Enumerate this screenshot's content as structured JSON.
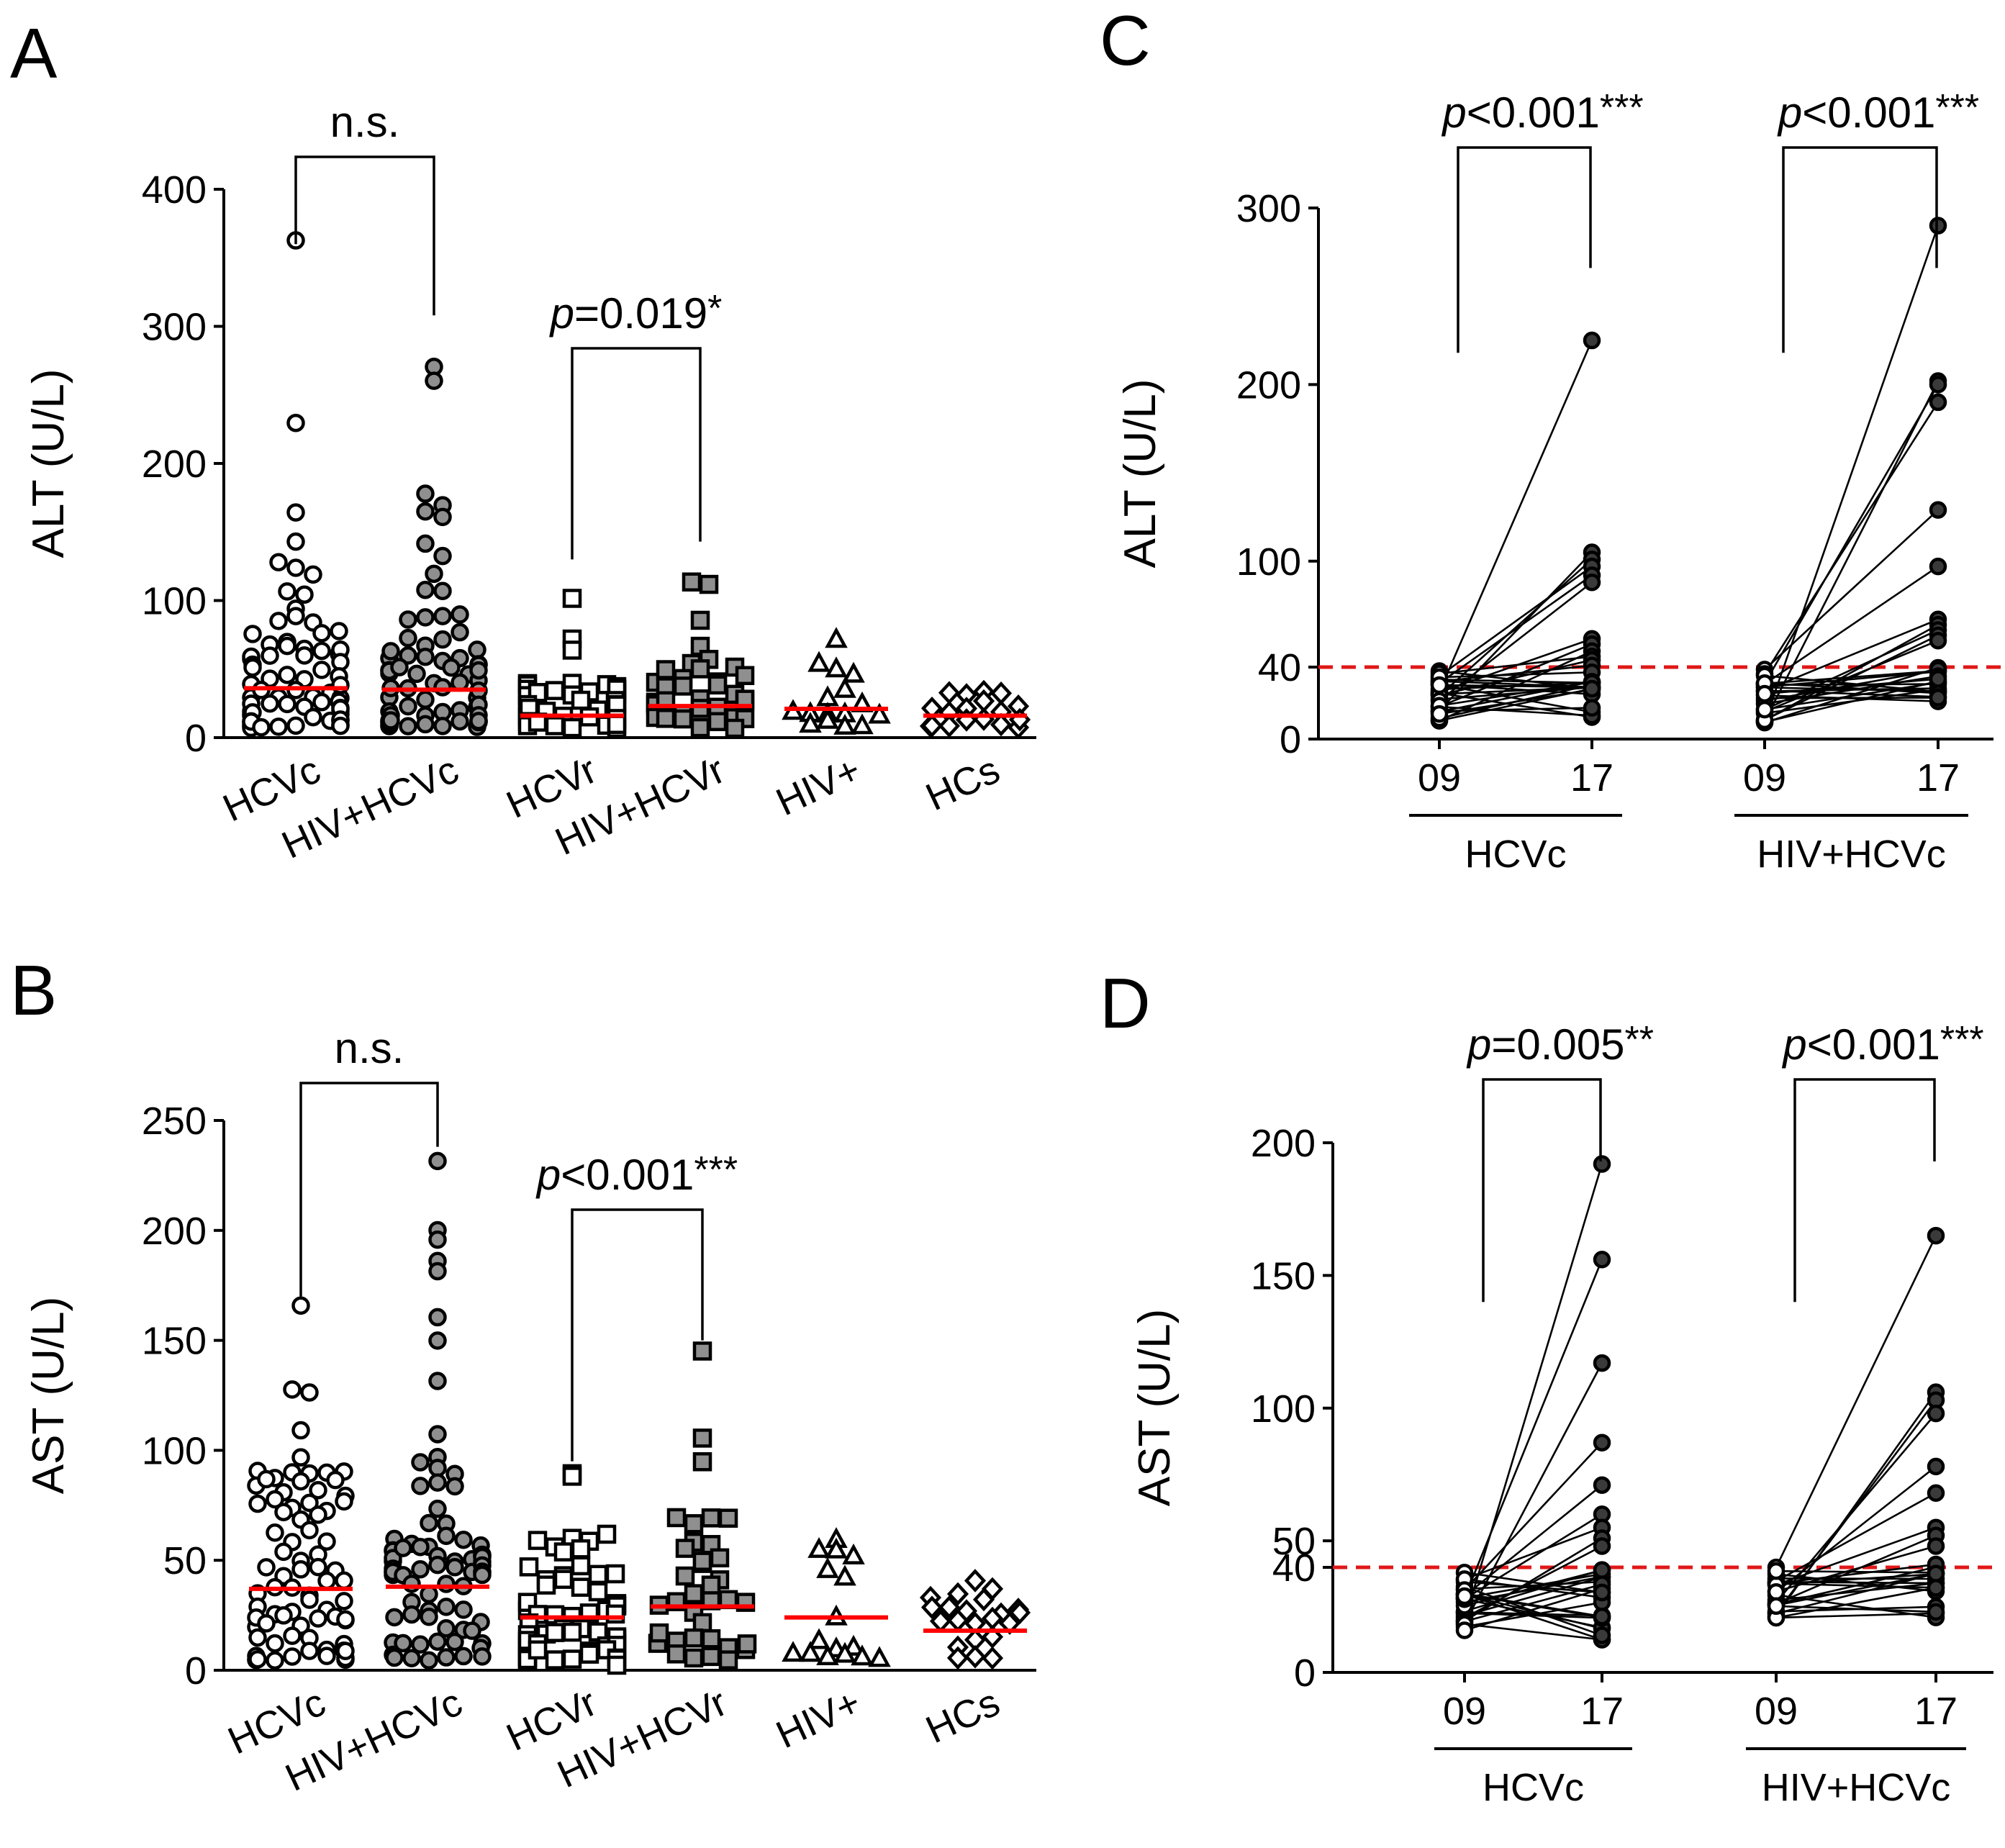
{
  "colors": {
    "median": "#ff0000",
    "threshold": "#e01818",
    "gray": "#8f8f8f",
    "dark": "#3a3a3a",
    "ink": "#000000"
  },
  "chart_data": [
    {
      "panel": "A",
      "type": "scatter",
      "ylabel": "ALT (U/L)",
      "yticks": [
        0,
        100,
        200,
        300,
        400
      ],
      "ylim": [
        0,
        400
      ],
      "categories": [
        "HCVc",
        "HIV+HCVc",
        "HCVr",
        "HIV+HCVr",
        "HIV+",
        "HCs"
      ],
      "groups": [
        {
          "name": "HCVc",
          "marker": "circle",
          "fill": "white",
          "median": 36,
          "n": 75
        },
        {
          "name": "HIV+HCVc",
          "marker": "circle",
          "fill": "gray",
          "median": 35,
          "n": 70
        },
        {
          "name": "HCVr",
          "marker": "square",
          "fill": "white",
          "median": 16,
          "n": 38
        },
        {
          "name": "HIV+HCVr",
          "marker": "square",
          "fill": "gray",
          "median": 23,
          "n": 34
        },
        {
          "name": "HIV+",
          "marker": "triangle",
          "fill": "white",
          "median": 21,
          "n": 16
        },
        {
          "name": "HCs",
          "marker": "diamond",
          "fill": "white",
          "median": 16,
          "n": 18
        }
      ],
      "outliers": [
        {
          "group": 0,
          "values": [
            362,
            229,
            165,
            143,
            127,
            124,
            118,
            107,
            104
          ]
        },
        {
          "group": 1,
          "values": [
            272,
            261,
            177,
            170,
            166,
            160,
            140,
            131,
            120,
            108,
            107
          ]
        },
        {
          "group": 2,
          "values": [
            102,
            73,
            65
          ]
        },
        {
          "group": 3,
          "values": [
            115,
            112,
            85,
            67
          ]
        },
        {
          "group": 4,
          "values": [
            71,
            51,
            45
          ]
        },
        {
          "group": 5,
          "values": [
            35,
            33
          ]
        }
      ],
      "comparisons": [
        {
          "from": 0,
          "to": 1,
          "label_prefix": "",
          "label": "n.s.",
          "stars": "",
          "left_top": 360,
          "right_top": 308
        },
        {
          "from": 2,
          "to": 3,
          "label_prefix": "p",
          "label": "=0.019",
          "stars": "*",
          "left_top": 130,
          "right_top": 143
        }
      ]
    },
    {
      "panel": "B",
      "type": "scatter",
      "ylabel": "AST (U/L)",
      "yticks": [
        0,
        50,
        100,
        150,
        200,
        250
      ],
      "ylim": [
        0,
        250
      ],
      "categories": [
        "HCVc",
        "HIV+HCVc",
        "HCVr",
        "HIV+HCVr",
        "HIV+",
        "HCs"
      ],
      "groups": [
        {
          "name": "HCVc",
          "marker": "circle",
          "fill": "white",
          "median": 37,
          "n": 78
        },
        {
          "name": "HIV+HCVc",
          "marker": "circle",
          "fill": "gray",
          "median": 38,
          "n": 80
        },
        {
          "name": "HCVr",
          "marker": "square",
          "fill": "white",
          "median": 24,
          "n": 60
        },
        {
          "name": "HIV+HCVr",
          "marker": "square",
          "fill": "gray",
          "median": 29,
          "n": 36
        },
        {
          "name": "HIV+",
          "marker": "triangle",
          "fill": "white",
          "median": 24,
          "n": 16
        },
        {
          "name": "HCs",
          "marker": "diamond",
          "fill": "white",
          "median": 18,
          "n": 22
        }
      ],
      "outliers": [
        {
          "group": 0,
          "values": [
            166,
            127,
            126,
            109,
            96
          ]
        },
        {
          "group": 1,
          "values": [
            232,
            200,
            195,
            187,
            182,
            160,
            149,
            131,
            107
          ]
        },
        {
          "group": 2,
          "values": [
            89,
            88,
            3
          ]
        },
        {
          "group": 3,
          "values": [
            145,
            105,
            95
          ]
        },
        {
          "group": 4,
          "values": [
            60,
            55,
            52
          ]
        },
        {
          "group": 5,
          "values": [
            24,
            22
          ]
        }
      ],
      "comparisons": [
        {
          "from": 0,
          "to": 1,
          "label_prefix": "",
          "label": "n.s.",
          "stars": "",
          "left_top": 170,
          "right_top": 238
        },
        {
          "from": 2,
          "to": 3,
          "label_prefix": "p",
          "label": "<0.001",
          "stars": "***",
          "left_top": 95,
          "right_top": 150
        }
      ]
    },
    {
      "panel": "C",
      "type": "paired-line",
      "ylabel": "ALT (U/L)",
      "yticks": [
        0,
        40,
        100,
        200,
        300
      ],
      "ylim": [
        0,
        300
      ],
      "threshold": 40,
      "timepoints": [
        "09",
        "17"
      ],
      "groups": [
        {
          "name": "HCVc",
          "n": 30,
          "range09": [
            10,
            40
          ],
          "low17": 10,
          "high17": [
            225,
            105,
            101,
            97,
            92,
            88,
            56,
            53,
            49,
            46,
            44
          ]
        },
        {
          "name": "HIV+HCVc",
          "n": 28,
          "range09": [
            8,
            40
          ],
          "low17": 20,
          "high17": [
            290,
            202,
            200,
            190,
            129,
            97,
            67,
            64,
            61,
            58,
            55
          ]
        }
      ],
      "comparisons": [
        {
          "group": 0,
          "label_prefix": "p",
          "label": "<0.001",
          "stars": "***",
          "left_top": 218,
          "right_top": 266
        },
        {
          "group": 1,
          "label_prefix": "p",
          "label": "<0.001",
          "stars": "***",
          "left_top": 218,
          "right_top": 266
        }
      ]
    },
    {
      "panel": "D",
      "type": "paired-line",
      "ylabel": "AST (U/L)",
      "yticks": [
        0,
        40,
        50,
        100,
        150,
        200
      ],
      "ylim": [
        0,
        200
      ],
      "threshold": 40,
      "timepoints": [
        "09",
        "17"
      ],
      "groups": [
        {
          "name": "HCVc",
          "n": 30,
          "range09": [
            16,
            40
          ],
          "low17": 11,
          "high17": [
            192,
            156,
            117,
            87,
            71,
            60,
            55,
            51,
            48
          ]
        },
        {
          "name": "HIV+HCVc",
          "n": 25,
          "range09": [
            20,
            40
          ],
          "low17": 20,
          "high17": [
            165,
            106,
            103,
            98,
            78,
            68,
            55,
            52,
            48
          ]
        }
      ],
      "comparisons": [
        {
          "group": 0,
          "label_prefix": "p",
          "label": "=0.005",
          "stars": "**",
          "left_top": 140,
          "right_top": 193
        },
        {
          "group": 1,
          "label_prefix": "p",
          "label": "<0.001",
          "stars": "***",
          "left_top": 140,
          "right_top": 193
        }
      ]
    }
  ]
}
